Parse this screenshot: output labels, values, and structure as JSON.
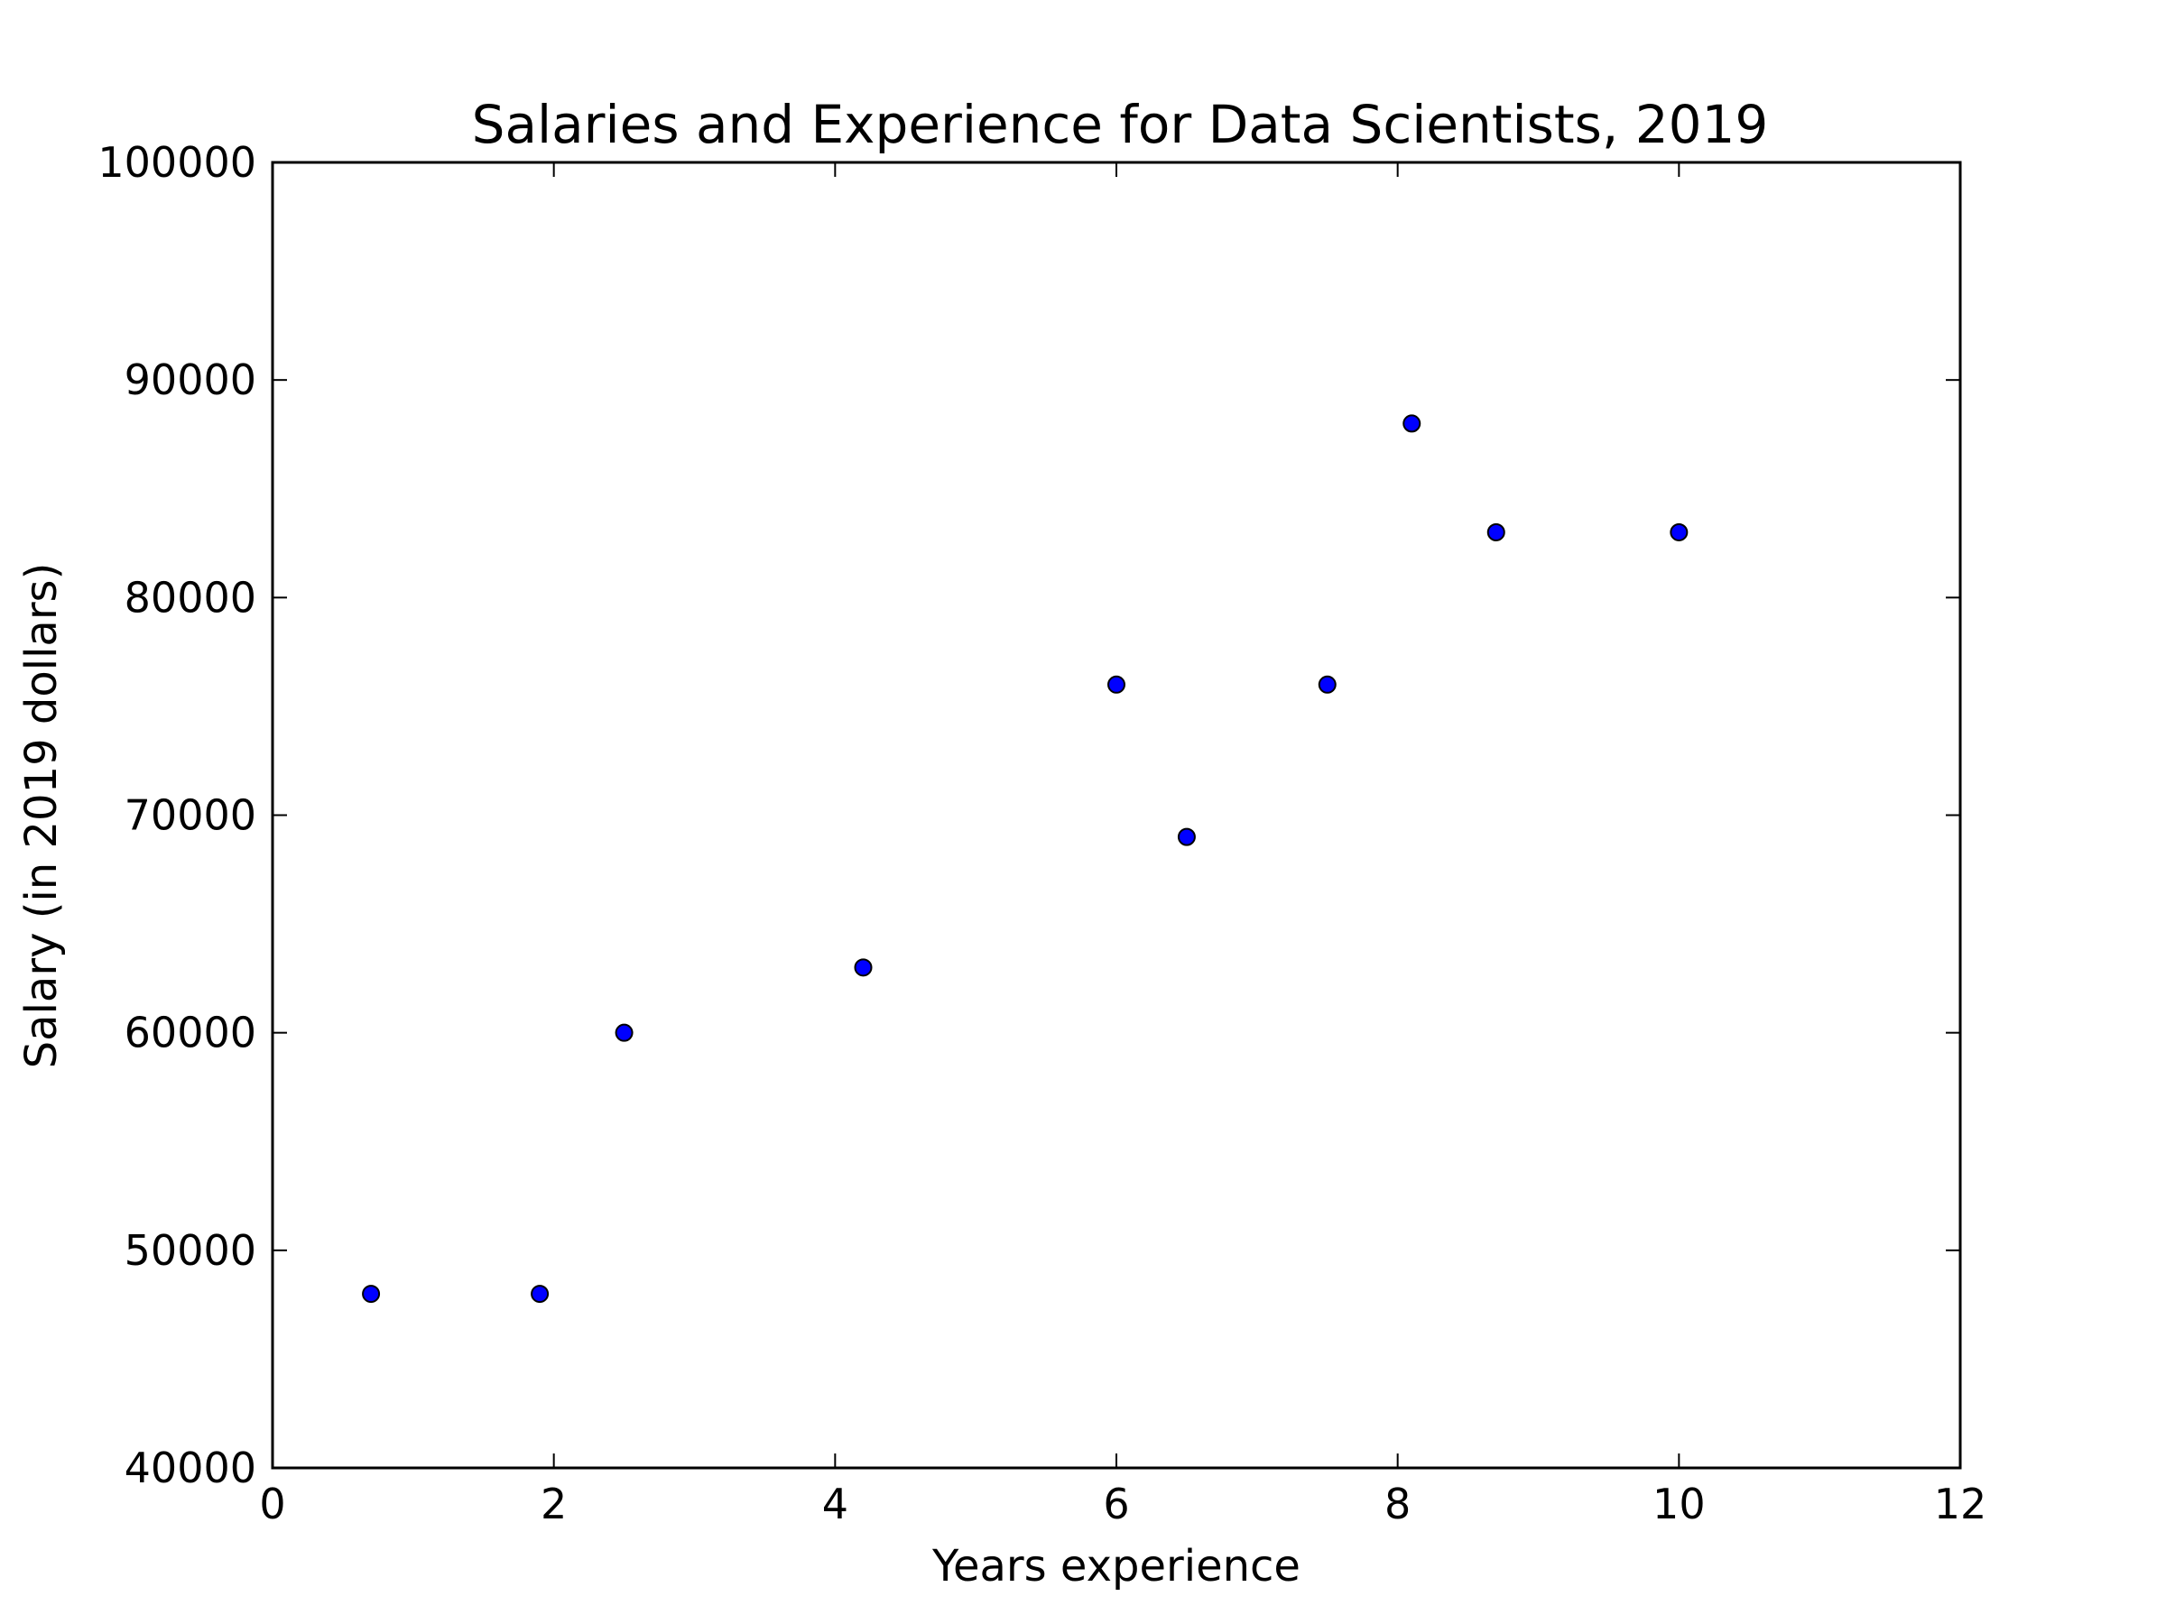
{
  "chart_data": {
    "type": "scatter",
    "title": "Salaries and Experience for Data Scientists, 2019",
    "xlabel": "Years experience",
    "ylabel": "Salary (in 2019 dollars)",
    "xlim": [
      0,
      12
    ],
    "ylim": [
      40000,
      100000
    ],
    "xticks": [
      0,
      2,
      4,
      6,
      8,
      10,
      12
    ],
    "yticks": [
      40000,
      50000,
      60000,
      70000,
      80000,
      90000,
      100000
    ],
    "grid": false,
    "marker_color": "#0000ff",
    "marker_edge_color": "#000000",
    "points": [
      {
        "x": 0.7,
        "y": 48000
      },
      {
        "x": 1.9,
        "y": 48000
      },
      {
        "x": 2.5,
        "y": 60000
      },
      {
        "x": 4.2,
        "y": 63000
      },
      {
        "x": 6.0,
        "y": 76000
      },
      {
        "x": 6.5,
        "y": 69000
      },
      {
        "x": 7.5,
        "y": 76000
      },
      {
        "x": 8.1,
        "y": 88000
      },
      {
        "x": 8.7,
        "y": 83000
      },
      {
        "x": 10.0,
        "y": 83000
      }
    ]
  }
}
